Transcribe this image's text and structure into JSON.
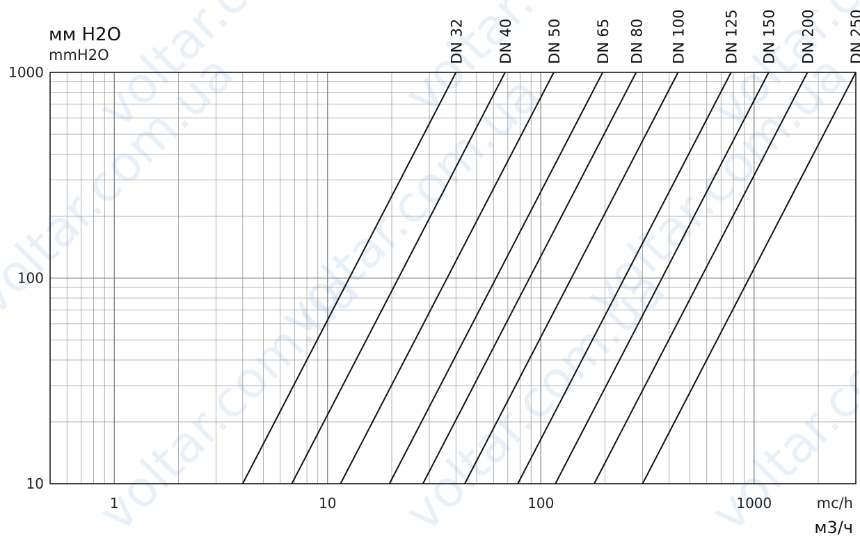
{
  "chart_data": {
    "type": "line",
    "x_scale": "log",
    "y_scale": "log",
    "xlim": [
      0.5,
      3000
    ],
    "ylim": [
      10,
      1000
    ],
    "grid": true,
    "y_label_main": "мм H2O",
    "y_label_sub": "mmH2O",
    "x_label_unit": "mc/h",
    "x_label_main": "м3/ч",
    "x_ticks": [
      1,
      10,
      100,
      1000
    ],
    "x_tick_labels": [
      "1",
      "10",
      "100",
      "1000"
    ],
    "y_ticks": [
      10,
      100,
      1000
    ],
    "y_tick_labels": [
      "10",
      "100",
      "1000"
    ],
    "series": [
      {
        "name": "DN 32",
        "x": [
          4.0,
          40.0
        ],
        "y": [
          10,
          1000
        ]
      },
      {
        "name": "DN 40",
        "x": [
          6.8,
          68.0
        ],
        "y": [
          10,
          1000
        ]
      },
      {
        "name": "DN 50",
        "x": [
          11.5,
          115.0
        ],
        "y": [
          10,
          1000
        ]
      },
      {
        "name": "DN 65",
        "x": [
          19.5,
          195.0
        ],
        "y": [
          10,
          1000
        ]
      },
      {
        "name": "DN 80",
        "x": [
          28.0,
          280.0
        ],
        "y": [
          10,
          1000
        ]
      },
      {
        "name": "DN 100",
        "x": [
          44.0,
          440.0
        ],
        "y": [
          10,
          1000
        ]
      },
      {
        "name": "DN 125",
        "x": [
          78.0,
          780.0
        ],
        "y": [
          10,
          1000
        ]
      },
      {
        "name": "DN 150",
        "x": [
          117.0,
          1170.0
        ],
        "y": [
          10,
          1000
        ]
      },
      {
        "name": "DN 200",
        "x": [
          178.0,
          1780.0
        ],
        "y": [
          10,
          1000
        ]
      },
      {
        "name": "DN 250",
        "x": [
          300.0,
          3000.0
        ],
        "y": [
          10,
          1000
        ]
      }
    ]
  },
  "watermark": {
    "text_a": "voltar.com.ua",
    "color": "#d6e7f6"
  }
}
